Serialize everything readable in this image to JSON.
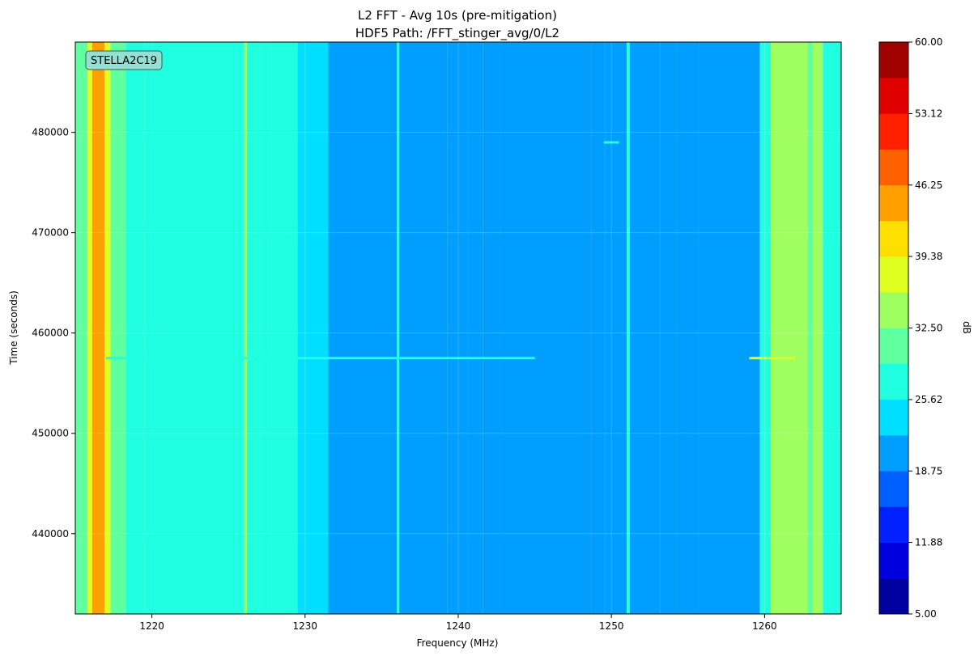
{
  "chart_data": {
    "type": "heatmap",
    "title": "L2 FFT - Avg 10s (pre-mitigation)",
    "subtitle": "HDF5 Path: /FFT_stinger_avg/0/L2",
    "xlabel": "Frequency (MHz)",
    "ylabel": "Time (seconds)",
    "xlim": [
      1215,
      1265
    ],
    "ylim": [
      432000,
      489000
    ],
    "x_ticks": [
      1220,
      1230,
      1240,
      1250,
      1260
    ],
    "y_ticks": [
      440000,
      450000,
      460000,
      470000,
      480000
    ],
    "colorbar": {
      "label": "dB",
      "range": [
        5.0,
        60.0
      ],
      "levels": 16,
      "ticks": [
        "5.00",
        "11.88",
        "18.75",
        "25.62",
        "32.50",
        "39.38",
        "46.25",
        "53.12",
        "60.00"
      ],
      "colormap": "jet"
    },
    "annotation": "STELLA2C19",
    "grid": true,
    "columns": [
      {
        "f0": 1215.0,
        "f1": 1215.8,
        "db": 30
      },
      {
        "f0": 1215.8,
        "f1": 1216.1,
        "db": 38
      },
      {
        "f0": 1216.1,
        "f1": 1216.9,
        "db": 44
      },
      {
        "f0": 1216.9,
        "f1": 1217.3,
        "db": 38
      },
      {
        "f0": 1217.3,
        "f1": 1218.3,
        "db": 30
      },
      {
        "f0": 1218.3,
        "f1": 1219.5,
        "db": 28
      },
      {
        "f0": 1219.5,
        "f1": 1226.0,
        "db": 26
      },
      {
        "f0": 1226.0,
        "f1": 1226.2,
        "db": 33
      },
      {
        "f0": 1226.2,
        "f1": 1227.0,
        "db": 26
      },
      {
        "f0": 1227.0,
        "f1": 1227.8,
        "db": 29
      },
      {
        "f0": 1227.8,
        "f1": 1229.5,
        "db": 26
      },
      {
        "f0": 1229.5,
        "f1": 1231.5,
        "db": 24
      },
      {
        "f0": 1231.5,
        "f1": 1236.0,
        "db": 21
      },
      {
        "f0": 1236.0,
        "f1": 1236.15,
        "db": 26
      },
      {
        "f0": 1236.15,
        "f1": 1239.3,
        "db": 21
      },
      {
        "f0": 1239.3,
        "f1": 1240.6,
        "db": 19
      },
      {
        "f0": 1240.6,
        "f1": 1241.6,
        "db": 21
      },
      {
        "f0": 1241.6,
        "f1": 1242.8,
        "db": 19
      },
      {
        "f0": 1242.8,
        "f1": 1248.7,
        "db": 21
      },
      {
        "f0": 1248.7,
        "f1": 1249.6,
        "db": 20
      },
      {
        "f0": 1249.6,
        "f1": 1251.0,
        "db": 21
      },
      {
        "f0": 1251.0,
        "f1": 1251.2,
        "db": 26
      },
      {
        "f0": 1251.2,
        "f1": 1253.2,
        "db": 19
      },
      {
        "f0": 1253.2,
        "f1": 1254.3,
        "db": 21
      },
      {
        "f0": 1254.3,
        "f1": 1255.7,
        "db": 19
      },
      {
        "f0": 1255.7,
        "f1": 1259.7,
        "db": 21
      },
      {
        "f0": 1259.7,
        "f1": 1260.4,
        "db": 28
      },
      {
        "f0": 1260.4,
        "f1": 1262.8,
        "db": 34
      },
      {
        "f0": 1262.8,
        "f1": 1263.1,
        "db": 30
      },
      {
        "f0": 1263.1,
        "f1": 1263.8,
        "db": 33
      },
      {
        "f0": 1263.8,
        "f1": 1265.0,
        "db": 28
      }
    ],
    "events": [
      {
        "t": 457500,
        "f0": 1217.0,
        "f1": 1245.0,
        "db": 27
      },
      {
        "t": 457500,
        "f0": 1259.0,
        "f1": 1262.0,
        "db": 36
      },
      {
        "t": 479000,
        "f0": 1249.5,
        "f1": 1250.5,
        "db": 27
      }
    ]
  }
}
